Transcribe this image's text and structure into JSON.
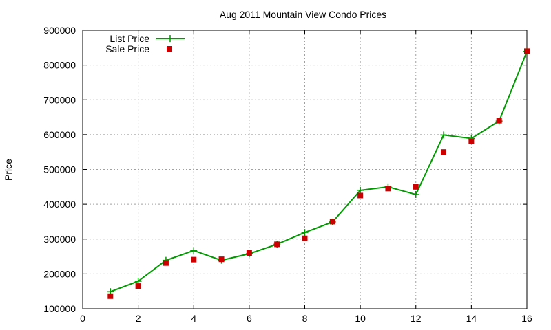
{
  "chart_data": {
    "type": "line",
    "title": "Aug 2011 Mountain View Condo Prices",
    "xlabel": "",
    "ylabel": "Price",
    "xlim": [
      0,
      16
    ],
    "ylim": [
      100000,
      900000
    ],
    "x_ticks": [
      0,
      2,
      4,
      6,
      8,
      10,
      12,
      14,
      16
    ],
    "y_ticks": [
      100000,
      200000,
      300000,
      400000,
      500000,
      600000,
      700000,
      800000,
      900000
    ],
    "grid": true,
    "legend_position": "top-left",
    "series": [
      {
        "name": "List Price",
        "style": "linespoints",
        "marker": "plus",
        "color": "#009900",
        "x": [
          1,
          2,
          3,
          4,
          5,
          6,
          7,
          8,
          9,
          10,
          11,
          12,
          13,
          14,
          15,
          16
        ],
        "values": [
          149000,
          179000,
          239000,
          267000,
          239000,
          258000,
          285000,
          319000,
          349000,
          440000,
          450000,
          428000,
          599000,
          589000,
          639000,
          839000
        ]
      },
      {
        "name": "Sale Price",
        "style": "points",
        "marker": "square",
        "color": "#cc0000",
        "x": [
          1,
          2,
          3,
          4,
          5,
          6,
          7,
          8,
          9,
          10,
          11,
          12,
          13,
          14,
          15,
          16
        ],
        "values": [
          136000,
          165000,
          231000,
          241000,
          242000,
          260000,
          285000,
          302000,
          350000,
          425000,
          445000,
          450000,
          550000,
          580000,
          640000,
          840000
        ]
      }
    ]
  }
}
